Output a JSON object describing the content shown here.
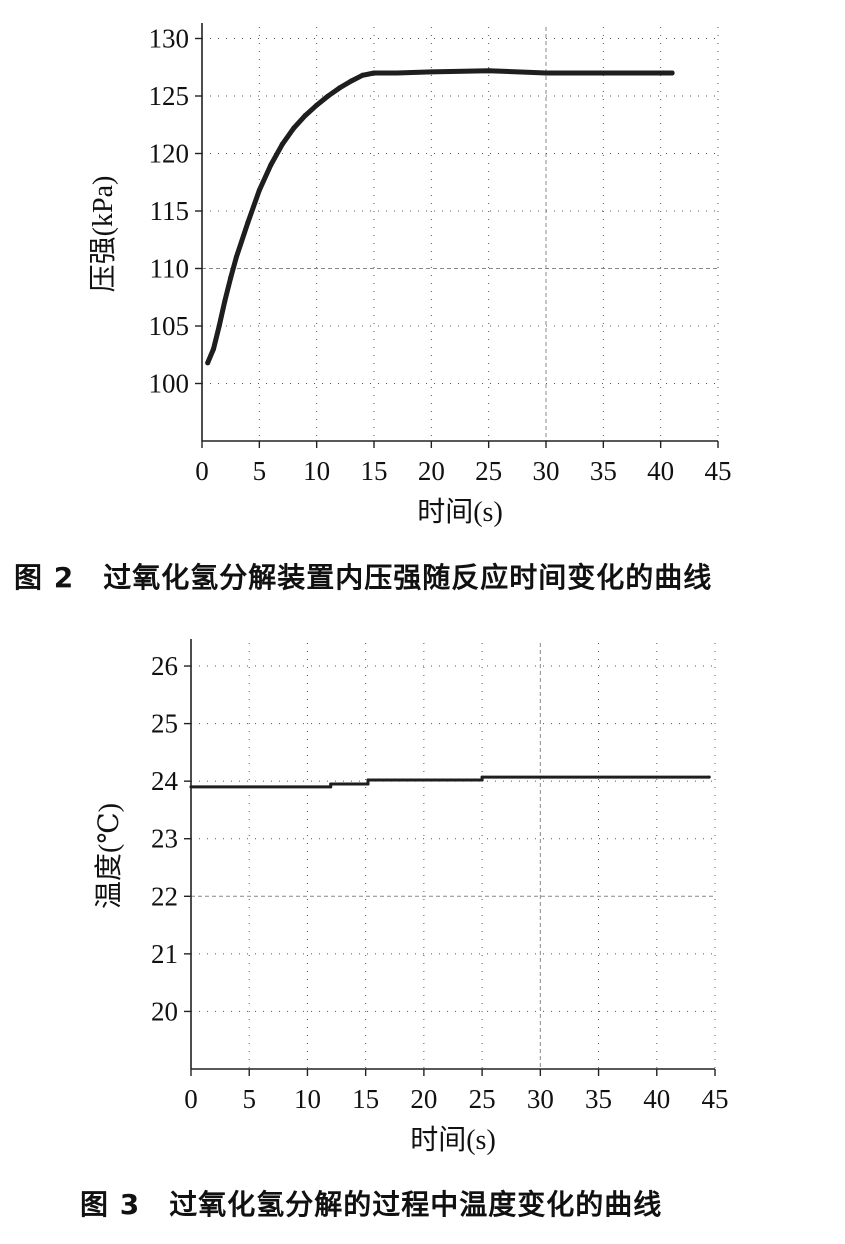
{
  "chart_data": [
    {
      "type": "line",
      "caption": "图 2　过氧化氢分解装置内压强随反应时间变化的曲线",
      "xlabel": "时间(s)",
      "ylabel": "压强(kPa)",
      "xlim": [
        0,
        45
      ],
      "ylim": [
        95,
        131
      ],
      "x_ticks": [
        "0",
        "5",
        "10",
        "15",
        "20",
        "25",
        "30",
        "35",
        "40",
        "45"
      ],
      "y_ticks": [
        "100",
        "105",
        "110",
        "115",
        "120",
        "125",
        "130"
      ],
      "grid": "dotted",
      "series": [
        {
          "x": [
            0.5,
            1,
            1.5,
            2,
            2.5,
            3,
            4,
            5,
            6,
            7,
            8,
            9,
            10,
            11,
            12,
            13,
            14,
            15,
            17,
            20,
            25,
            30,
            35,
            40,
            41
          ],
          "values": [
            101.8,
            103.0,
            105.0,
            107.2,
            109.2,
            111.0,
            114.0,
            116.8,
            119.0,
            120.8,
            122.2,
            123.3,
            124.2,
            125.0,
            125.7,
            126.3,
            126.8,
            127.0,
            127.0,
            127.1,
            127.2,
            127.0,
            127.0,
            127.0,
            127.0
          ]
        }
      ]
    },
    {
      "type": "line",
      "caption": "图 3　过氧化氢分解的过程中温度变化的曲线",
      "xlabel": "时间(s)",
      "ylabel": "温度(℃)",
      "xlim": [
        0,
        45
      ],
      "ylim": [
        19,
        26.4
      ],
      "x_ticks": [
        "0",
        "5",
        "10",
        "15",
        "20",
        "25",
        "30",
        "35",
        "40",
        "45"
      ],
      "y_ticks": [
        "20",
        "21",
        "22",
        "23",
        "24",
        "25",
        "26"
      ],
      "grid": "dotted",
      "series": [
        {
          "x": [
            0,
            12,
            12,
            15.2,
            15.2,
            25,
            25,
            44.5
          ],
          "values": [
            23.9,
            23.9,
            23.95,
            23.95,
            24.02,
            24.02,
            24.07,
            24.07
          ]
        }
      ]
    }
  ]
}
